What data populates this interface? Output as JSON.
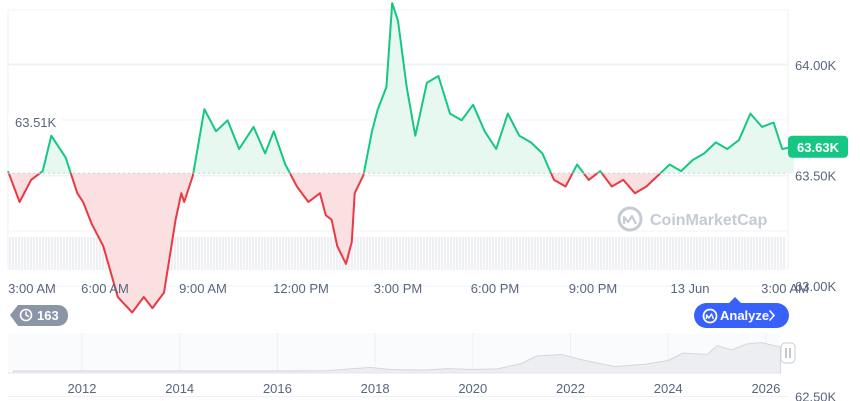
{
  "chart_data": {
    "type": "line",
    "title": "",
    "xlabel": "",
    "ylabel": "",
    "ylim": [
      62.2,
      64.55
    ],
    "y_unit": "K",
    "baseline": 63.51,
    "baseline_label": "63.51K",
    "current_label": "63.63K",
    "y_ticks": [
      {
        "value": 64.0,
        "label": "64.00K"
      },
      {
        "value": 63.5,
        "label": "63.50K"
      },
      {
        "value": 63.0,
        "label": "63.00K"
      },
      {
        "value": 62.5,
        "label": "62.50K"
      }
    ],
    "x_ticks": [
      "3:00 AM",
      "6:00 AM",
      "9:00 AM",
      "12:00 PM",
      "3:00 PM",
      "6:00 PM",
      "9:00 PM",
      "13 Jun",
      "3:00 AM"
    ],
    "x_hours": [
      0,
      3,
      6,
      9,
      12,
      15,
      18,
      21,
      24,
      27
    ],
    "series": [
      {
        "x": [
          0,
          0.4,
          0.8,
          1.2,
          1.5,
          2.0,
          2.4,
          2.6,
          2.9,
          3.3,
          3.8,
          4.3,
          4.7,
          5.0,
          5.4,
          5.8,
          6.0,
          6.1,
          6.4,
          6.8,
          7.2,
          7.6,
          8.0,
          8.5,
          8.9,
          9.2,
          9.6,
          10.0,
          10.4,
          10.8,
          11.0,
          11.2,
          11.4,
          11.7,
          11.9,
          12.0,
          12.3,
          12.6,
          12.8,
          13.1,
          13.3,
          13.5,
          13.8,
          14.1,
          14.5,
          14.9,
          15.3,
          15.7,
          16.1,
          16.5,
          16.9,
          17.3,
          17.7,
          18.1,
          18.5,
          18.9,
          19.3,
          19.7,
          20.1,
          20.5,
          20.9,
          21.3,
          21.7,
          22.1,
          22.5,
          22.9,
          23.3,
          23.7,
          24.1,
          24.5,
          24.9,
          25.3,
          25.7,
          26.1,
          26.5,
          26.8,
          27.2
        ],
        "values": [
          63.52,
          63.38,
          63.48,
          63.52,
          63.68,
          63.58,
          63.42,
          63.38,
          63.28,
          63.18,
          62.95,
          62.88,
          62.95,
          62.9,
          62.97,
          63.3,
          63.42,
          63.38,
          63.5,
          63.8,
          63.7,
          63.75,
          63.62,
          63.72,
          63.6,
          63.7,
          63.55,
          63.45,
          63.38,
          63.42,
          63.32,
          63.3,
          63.18,
          63.1,
          63.2,
          63.42,
          63.5,
          63.7,
          63.8,
          63.9,
          64.28,
          64.2,
          63.9,
          63.68,
          63.92,
          63.95,
          63.78,
          63.75,
          63.82,
          63.7,
          63.62,
          63.78,
          63.68,
          63.65,
          63.6,
          63.48,
          63.45,
          63.55,
          63.48,
          63.52,
          63.45,
          63.48,
          63.42,
          63.45,
          63.5,
          63.55,
          63.52,
          63.57,
          63.6,
          63.65,
          63.62,
          63.66,
          63.78,
          63.72,
          63.74,
          63.62,
          63.63
        ]
      }
    ],
    "history_x_ticks": [
      "2012",
      "2014",
      "2016",
      "2018",
      "2020",
      "2022",
      "2024",
      "2026"
    ],
    "history_years": [
      2012,
      2014,
      2016,
      2018,
      2020,
      2022,
      2024,
      2026
    ],
    "history": {
      "years": [
        2010.6,
        2016,
        2017.0,
        2017.9,
        2018.3,
        2019.0,
        2019.5,
        2020.0,
        2020.5,
        2021.0,
        2021.3,
        2021.8,
        2022.3,
        2022.9,
        2023.5,
        2024.0,
        2024.3,
        2024.8,
        2025.0,
        2025.3,
        2025.6,
        2025.9,
        2026.3
      ],
      "values": [
        0,
        0,
        0.01,
        0.12,
        0.05,
        0.03,
        0.08,
        0.05,
        0.07,
        0.25,
        0.5,
        0.55,
        0.35,
        0.15,
        0.22,
        0.35,
        0.6,
        0.55,
        0.85,
        0.7,
        0.9,
        0.95,
        0.8
      ]
    },
    "grid": true,
    "colors": {
      "up": "#16c784",
      "down": "#ea3943",
      "up_fill": "#e6f8ef",
      "down_fill": "#fbe0e2",
      "tag_bg": "#16c784",
      "volume": "#eef0f3",
      "history_fill": "#eceef2",
      "history_line": "#d3d7de"
    }
  },
  "watermark": {
    "text": "CoinMarketCap",
    "icon": "coinmarketcap-logo-icon"
  },
  "history_badge": {
    "icon": "clock-history-icon",
    "label": "163"
  },
  "analyze_button": {
    "icon": "coinmarketcap-logo-icon",
    "label": "Analyze",
    "chevron": "chevron-right-icon",
    "color": "#3861fb"
  },
  "range_handle": {
    "icon": "pause-handle-icon"
  }
}
